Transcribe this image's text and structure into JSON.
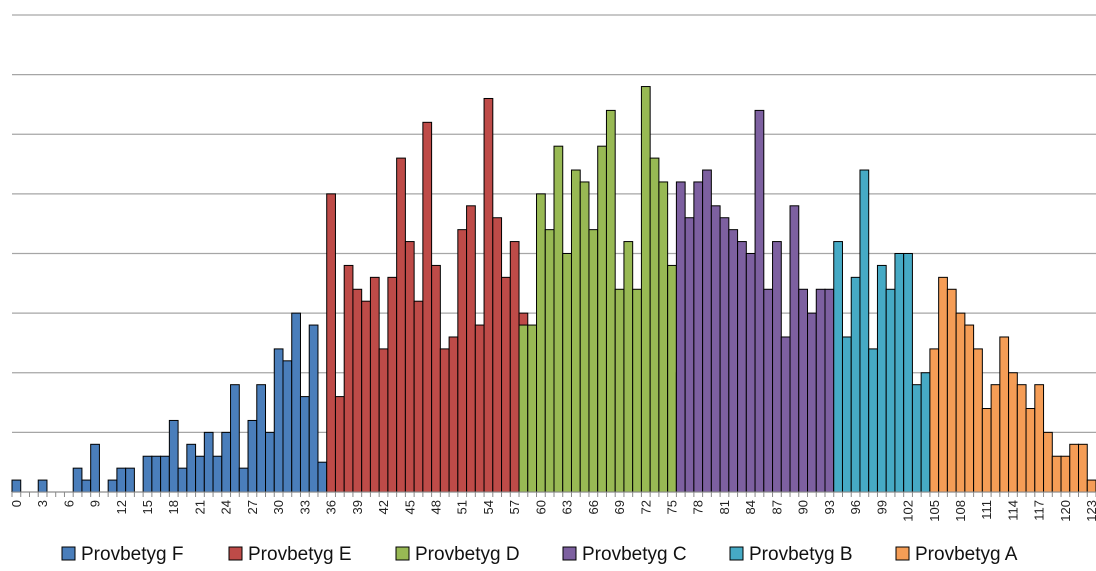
{
  "chart_data": {
    "type": "bar",
    "stacked": false,
    "x": [
      0,
      1,
      2,
      3,
      4,
      5,
      6,
      7,
      8,
      9,
      10,
      11,
      12,
      13,
      14,
      15,
      16,
      17,
      18,
      19,
      20,
      21,
      22,
      23,
      24,
      25,
      26,
      27,
      28,
      29,
      30,
      31,
      32,
      33,
      34,
      35,
      36,
      37,
      38,
      39,
      40,
      41,
      42,
      43,
      44,
      45,
      46,
      47,
      48,
      49,
      50,
      51,
      52,
      53,
      54,
      55,
      56,
      57,
      58,
      59,
      60,
      61,
      62,
      63,
      64,
      65,
      66,
      67,
      68,
      69,
      70,
      71,
      72,
      73,
      74,
      75,
      76,
      77,
      78,
      79,
      80,
      81,
      82,
      83,
      84,
      85,
      86,
      87,
      88,
      89,
      90,
      91,
      92,
      93,
      94,
      95,
      96,
      97,
      98,
      99,
      100,
      101,
      102,
      103,
      104,
      105,
      106,
      107,
      108,
      109,
      110,
      111,
      112,
      113,
      114,
      115,
      116,
      117,
      118,
      119,
      120,
      121,
      122,
      123
    ],
    "xtick_labels": [
      "0",
      "3",
      "6",
      "9",
      "12",
      "15",
      "18",
      "21",
      "24",
      "27",
      "30",
      "33",
      "36",
      "39",
      "42",
      "45",
      "48",
      "51",
      "54",
      "57",
      "60",
      "63",
      "66",
      "69",
      "72",
      "75",
      "78",
      "81",
      "84",
      "87",
      "90",
      "93",
      "96",
      "99",
      "102",
      "105",
      "108",
      "111",
      "114",
      "117",
      "120",
      "123"
    ],
    "ylim": [
      0,
      8
    ],
    "grid": true,
    "legend_position": "bottom",
    "series": [
      {
        "name": "Provbetyg F",
        "color": "#4a7ebb",
        "values": [
          0.2,
          0,
          0,
          0.2,
          0,
          0,
          0,
          0.4,
          0.2,
          0.8,
          0,
          0.2,
          0.4,
          0.4,
          0,
          0.6,
          0.6,
          0.6,
          1.2,
          0.4,
          0.8,
          0.6,
          1.0,
          0.6,
          1.0,
          1.8,
          0.4,
          1.2,
          1.8,
          1.0,
          2.4,
          2.2,
          3.0,
          1.6,
          2.8,
          0.5,
          0.2,
          0,
          0,
          0,
          0,
          0,
          0,
          0,
          0,
          0,
          0,
          0,
          0,
          0,
          0,
          0,
          0,
          0,
          0,
          0,
          0,
          0,
          0,
          0,
          0,
          0,
          0,
          0,
          0,
          0,
          0,
          0,
          0,
          0,
          0,
          0,
          0,
          0,
          0,
          0,
          0,
          0,
          0,
          0,
          0,
          0,
          0,
          0,
          0,
          0,
          0,
          0,
          0,
          0,
          0,
          0,
          0,
          0,
          0,
          0,
          0,
          0,
          0,
          0,
          0,
          0,
          0,
          0,
          0,
          0,
          0,
          0,
          0,
          0,
          0,
          0,
          0,
          0,
          0,
          0,
          0,
          0,
          0,
          0,
          0,
          0,
          0,
          0
        ]
      },
      {
        "name": "Provbetyg E",
        "color": "#be4b48",
        "values": [
          0,
          0,
          0,
          0,
          0,
          0,
          0,
          0,
          0,
          0,
          0,
          0,
          0,
          0,
          0,
          0,
          0,
          0,
          0,
          0,
          0,
          0,
          0,
          0,
          0,
          0,
          0,
          0,
          0,
          0,
          0,
          0,
          0,
          0,
          0,
          0,
          5.0,
          1.6,
          3.8,
          3.4,
          3.2,
          3.6,
          2.4,
          3.6,
          5.6,
          4.2,
          3.2,
          6.2,
          3.8,
          2.4,
          2.6,
          4.4,
          4.8,
          2.8,
          6.6,
          4.6,
          3.6,
          4.2,
          3.0,
          0.6,
          1.0,
          0.6,
          0.2,
          0.4,
          0.4,
          0,
          0,
          0,
          0,
          0,
          0,
          0,
          0,
          0,
          0,
          0,
          0,
          0,
          0,
          0,
          0,
          0,
          0,
          0,
          0,
          0,
          0,
          0,
          0,
          0,
          0,
          0,
          0,
          0,
          0,
          0,
          0,
          0,
          0,
          0,
          0,
          0,
          0,
          0,
          0,
          0,
          0,
          0,
          0,
          0,
          0,
          0,
          0,
          0,
          0,
          0,
          0,
          0,
          0,
          0,
          0,
          0,
          0,
          0
        ]
      },
      {
        "name": "Provbetyg D",
        "color": "#98b954",
        "values": [
          0,
          0,
          0,
          0,
          0,
          0,
          0,
          0,
          0,
          0,
          0,
          0,
          0,
          0,
          0,
          0,
          0,
          0,
          0,
          0,
          0,
          0,
          0,
          0,
          0,
          0,
          0,
          0,
          0,
          0,
          0,
          0,
          0,
          0,
          0,
          0,
          0,
          0,
          0,
          0,
          0,
          0,
          0,
          0,
          0,
          0,
          0,
          0,
          0,
          0,
          0,
          0,
          0,
          0,
          0,
          0,
          0,
          0,
          2.8,
          2.8,
          5.0,
          4.4,
          5.8,
          4.0,
          5.4,
          5.2,
          4.4,
          5.8,
          6.4,
          3.4,
          4.2,
          3.4,
          6.8,
          5.6,
          5.2,
          3.8,
          2.0,
          0.8,
          0.2,
          0.2,
          0,
          0,
          0,
          0,
          0,
          0,
          0,
          0,
          0,
          0,
          0,
          0,
          0,
          0,
          0,
          0,
          0,
          0,
          0,
          0,
          0,
          0,
          0,
          0,
          0,
          0,
          0,
          0,
          0,
          0,
          0,
          0,
          0,
          0,
          0,
          0,
          0,
          0,
          0,
          0,
          0,
          0,
          0,
          0
        ]
      },
      {
        "name": "Provbetyg C",
        "color": "#7d60a0",
        "values": [
          0,
          0,
          0,
          0,
          0,
          0,
          0,
          0,
          0,
          0,
          0,
          0,
          0,
          0,
          0,
          0,
          0,
          0,
          0,
          0,
          0,
          0,
          0,
          0,
          0,
          0,
          0,
          0,
          0,
          0,
          0,
          0,
          0,
          0,
          0,
          0,
          0,
          0,
          0,
          0,
          0,
          0,
          0,
          0,
          0,
          0,
          0,
          0,
          0,
          0,
          0,
          0,
          0,
          0,
          0,
          0,
          0,
          0,
          0,
          0,
          0,
          0,
          0,
          0,
          0,
          0,
          0,
          0,
          0,
          0,
          0,
          0,
          0,
          0,
          0,
          0,
          5.2,
          4.6,
          5.2,
          5.4,
          4.8,
          4.6,
          4.4,
          4.2,
          4.0,
          6.4,
          3.4,
          4.2,
          2.6,
          4.8,
          3.4,
          3.0,
          3.4,
          3.4,
          1.2,
          0.4,
          0,
          0,
          0,
          0,
          0,
          0,
          0,
          0,
          0,
          0,
          0,
          0,
          0,
          0,
          0,
          0,
          0,
          0,
          0,
          0,
          0,
          0,
          0,
          0,
          0,
          0,
          0,
          0
        ]
      },
      {
        "name": "Provbetyg B",
        "color": "#46aac5",
        "values": [
          0,
          0,
          0,
          0,
          0,
          0,
          0,
          0,
          0,
          0,
          0,
          0,
          0,
          0,
          0,
          0,
          0,
          0,
          0,
          0,
          0,
          0,
          0,
          0,
          0,
          0,
          0,
          0,
          0,
          0,
          0,
          0,
          0,
          0,
          0,
          0,
          0,
          0,
          0,
          0,
          0,
          0,
          0,
          0,
          0,
          0,
          0,
          0,
          0,
          0,
          0,
          0,
          0,
          0,
          0,
          0,
          0,
          0,
          0,
          0,
          0,
          0,
          0,
          0,
          0,
          0,
          0,
          0,
          0,
          0,
          0,
          0,
          0,
          0,
          0,
          0,
          0,
          0,
          0,
          0,
          0,
          0,
          0,
          0,
          0,
          0,
          0,
          0,
          0,
          0,
          0,
          0,
          0,
          0,
          4.2,
          2.6,
          3.6,
          5.4,
          2.4,
          3.8,
          3.4,
          4.0,
          4.0,
          1.8,
          2.0,
          1.0,
          0.4,
          0,
          0.4,
          0,
          0,
          0,
          0,
          0,
          0,
          0,
          0,
          0,
          0,
          0,
          0,
          0,
          0,
          0
        ]
      },
      {
        "name": "Provbetyg A",
        "color": "#f59d56",
        "values": [
          0,
          0,
          0,
          0,
          0,
          0,
          0,
          0,
          0,
          0,
          0,
          0,
          0,
          0,
          0,
          0,
          0,
          0,
          0,
          0,
          0,
          0,
          0,
          0,
          0,
          0,
          0,
          0,
          0,
          0,
          0,
          0,
          0,
          0,
          0,
          0,
          0,
          0,
          0,
          0,
          0,
          0,
          0,
          0,
          0,
          0,
          0,
          0,
          0,
          0,
          0,
          0,
          0,
          0,
          0,
          0,
          0,
          0,
          0,
          0,
          0,
          0,
          0,
          0,
          0,
          0,
          0,
          0,
          0,
          0,
          0,
          0,
          0,
          0,
          0,
          0,
          0,
          0,
          0,
          0,
          0,
          0,
          0,
          0,
          0,
          0,
          0,
          0,
          0,
          0,
          0,
          0,
          0,
          0,
          0,
          0,
          0,
          0,
          0,
          0,
          0,
          0,
          0,
          0,
          0,
          2.4,
          3.6,
          3.4,
          3.0,
          2.8,
          2.4,
          1.4,
          1.8,
          2.6,
          2.0,
          1.8,
          1.4,
          1.8,
          1.0,
          0.6,
          0.6,
          0.8,
          0.8,
          0.2
        ]
      }
    ]
  }
}
